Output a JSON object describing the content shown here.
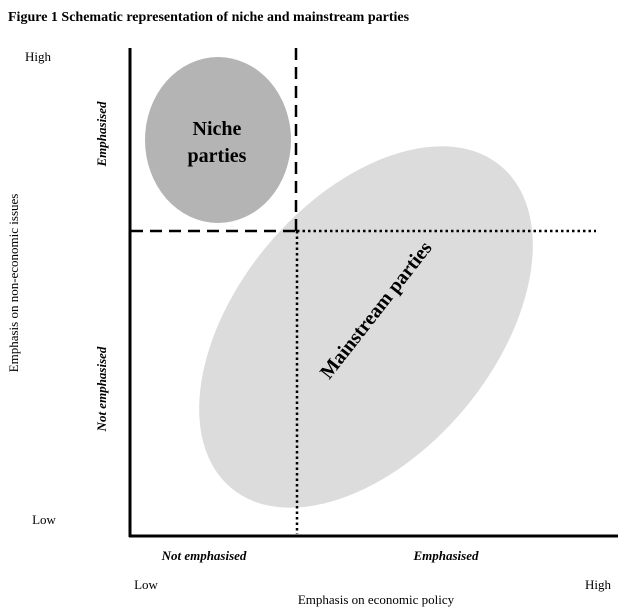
{
  "figure": {
    "title": "Figure 1 Schematic representation of niche and mainstream parties"
  },
  "axes": {
    "x_label": "Emphasis on economic policy",
    "x_low": "Low",
    "x_high": "High",
    "y_label": "Emphasis on non-economic issues",
    "y_low": "Low",
    "y_high": "High"
  },
  "zones": {
    "x_left": "Not emphasised",
    "x_right": "Emphasised",
    "y_top": "Emphasised",
    "y_bottom": "Not emphasised"
  },
  "regions": {
    "niche_line1": "Niche",
    "niche_line2": "parties",
    "mainstream": "Mainstream parties"
  },
  "colors": {
    "niche_fill": "#b4b4b4",
    "mainstream_fill": "#dcdcdc",
    "lines": "#000000"
  }
}
